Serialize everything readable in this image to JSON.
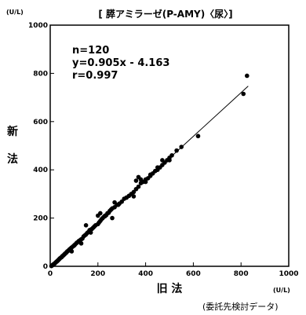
{
  "chart_data": {
    "type": "scatter",
    "title": "[ 膵アミラーゼ(P-AMY)〈尿〉]",
    "xlabel": "旧 法",
    "ylabel": "新 法",
    "x_unit": "(U/L)",
    "y_unit": "(U/L)",
    "xlim": [
      0,
      1000
    ],
    "ylim": [
      0,
      1000
    ],
    "xticks": [
      "0",
      "200",
      "400",
      "600",
      "800",
      "1000"
    ],
    "yticks": [
      "0",
      "200",
      "400",
      "600",
      "800",
      "1000"
    ],
    "grid": false,
    "annotations": [
      "n=120",
      "y=0.905x - 4.163",
      "r=0.997"
    ],
    "regression": {
      "slope": 0.905,
      "intercept": -4.163,
      "x_range": [
        5,
        830
      ]
    },
    "footnote": "(委託先検討データ)",
    "points": [
      [
        5,
        1
      ],
      [
        8,
        4
      ],
      [
        10,
        5
      ],
      [
        12,
        7
      ],
      [
        15,
        9
      ],
      [
        18,
        11
      ],
      [
        20,
        13
      ],
      [
        22,
        15
      ],
      [
        25,
        18
      ],
      [
        28,
        20
      ],
      [
        30,
        22
      ],
      [
        32,
        24
      ],
      [
        35,
        27
      ],
      [
        38,
        30
      ],
      [
        40,
        32
      ],
      [
        42,
        34
      ],
      [
        45,
        36
      ],
      [
        48,
        38
      ],
      [
        50,
        41
      ],
      [
        52,
        43
      ],
      [
        55,
        45
      ],
      [
        58,
        48
      ],
      [
        60,
        50
      ],
      [
        62,
        52
      ],
      [
        65,
        55
      ],
      [
        68,
        57
      ],
      [
        70,
        60
      ],
      [
        72,
        62
      ],
      [
        75,
        64
      ],
      [
        78,
        67
      ],
      [
        80,
        69
      ],
      [
        82,
        71
      ],
      [
        85,
        73
      ],
      [
        88,
        76
      ],
      [
        90,
        78
      ],
      [
        95,
        82
      ],
      [
        100,
        86
      ],
      [
        102,
        88
      ],
      [
        105,
        91
      ],
      [
        110,
        96
      ],
      [
        112,
        98
      ],
      [
        115,
        100
      ],
      [
        120,
        105
      ],
      [
        125,
        108
      ],
      [
        130,
        112
      ],
      [
        135,
        115
      ],
      [
        140,
        124
      ],
      [
        145,
        128
      ],
      [
        150,
        132
      ],
      [
        155,
        138
      ],
      [
        160,
        142
      ],
      [
        165,
        150
      ],
      [
        170,
        152
      ],
      [
        175,
        155
      ],
      [
        180,
        160
      ],
      [
        185,
        165
      ],
      [
        190,
        170
      ],
      [
        200,
        175
      ],
      [
        205,
        182
      ],
      [
        210,
        188
      ],
      [
        215,
        195
      ],
      [
        220,
        200
      ],
      [
        225,
        205
      ],
      [
        230,
        208
      ],
      [
        235,
        212
      ],
      [
        240,
        220
      ],
      [
        245,
        222
      ],
      [
        250,
        230
      ],
      [
        255,
        235
      ],
      [
        260,
        240
      ],
      [
        270,
        245
      ],
      [
        280,
        255
      ],
      [
        290,
        260
      ],
      [
        300,
        268
      ],
      [
        310,
        280
      ],
      [
        320,
        285
      ],
      [
        330,
        292
      ],
      [
        340,
        300
      ],
      [
        350,
        308
      ],
      [
        360,
        320
      ],
      [
        370,
        330
      ],
      [
        380,
        345
      ],
      [
        390,
        350
      ],
      [
        400,
        360
      ],
      [
        410,
        365
      ],
      [
        420,
        375
      ],
      [
        430,
        385
      ],
      [
        440,
        395
      ],
      [
        450,
        400
      ],
      [
        460,
        410
      ],
      [
        470,
        420
      ],
      [
        480,
        430
      ],
      [
        490,
        440
      ],
      [
        500,
        450
      ],
      [
        510,
        460
      ],
      [
        530,
        480
      ],
      [
        550,
        495
      ],
      [
        620,
        540
      ],
      [
        810,
        715
      ],
      [
        825,
        790
      ],
      [
        150,
        170
      ],
      [
        170,
        140
      ],
      [
        200,
        210
      ],
      [
        210,
        220
      ],
      [
        230,
        210
      ],
      [
        260,
        200
      ],
      [
        270,
        265
      ],
      [
        285,
        255
      ],
      [
        320,
        285
      ],
      [
        350,
        290
      ],
      [
        360,
        355
      ],
      [
        370,
        370
      ],
      [
        380,
        360
      ],
      [
        400,
        350
      ],
      [
        420,
        380
      ],
      [
        450,
        410
      ],
      [
        470,
        440
      ],
      [
        500,
        440
      ],
      [
        130,
        95
      ],
      [
        90,
        62
      ]
    ]
  }
}
